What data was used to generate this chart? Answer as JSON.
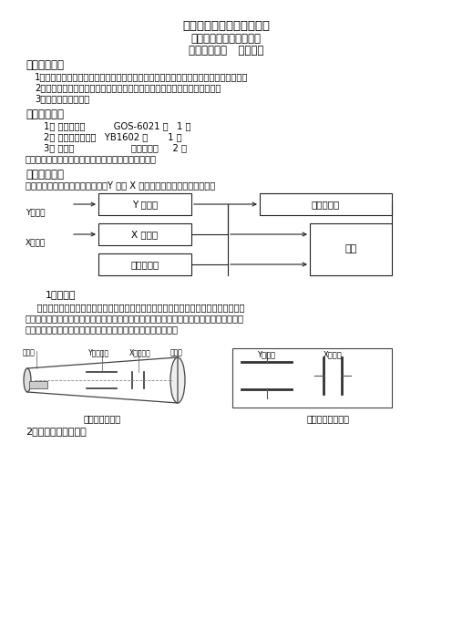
{
  "title_line1": "《示波器的使用》实验报告",
  "title_line2": "物理实验报告示范文本：",
  "title_line3": "包含数据处理   李萨如图",
  "section1": "【实验目的】",
  "obj1": "1．了解示波器显示波形的原理，了解示波器各主要组成部分及它们之间的联系和配合；",
  "obj2": "2．熟悉使用示波器的基本方法，学会用示波器测量波形的电压幅度和频率；",
  "obj3": "3．观察李萨如图形。",
  "section2": "【实验仪器】",
  "inst1": "1、 双踪示波器          GOS-6021 型   1 台",
  "inst2": "2、 函数信号发生器   YB1602 型       1 台",
  "inst3": "3、 连接线                    示波器专用     2 根",
  "inst_note": "示波器和信号发生器的使用说明请熟读常用仪器部分。",
  "section3": "【实验原理】",
  "principle": "示波器由示波管、扫描同步系统、Y 轴和 X 轴放大系统和电源四部分组成，",
  "sub1": "1、示波管",
  "tube1": "    如图所示，左端为一电子枪，电子枪加热后发出一束电子，电子经电场加速以高速打在",
  "tube2": "右端的药光屏上，屏上的药光物发光形成一亮点，亮点在偏转板电压的作用下，位置也随之",
  "tube3": "改变。在一定范围内，亮点的位移与偏转板上所加电压成正比。",
  "sub2": "2、扫描与同步的作用",
  "lbl_Y_in": "Y轴输入",
  "lbl_X_in": "X轴输入",
  "lbl_Y_amp": "Y 轴放大",
  "lbl_X_amp": "X 轴放大",
  "lbl_sweep": "扫描和整步",
  "lbl_crt": "电子示波管",
  "lbl_power": "电源",
  "cap1": "示波管结构简图",
  "cap2": "示波管内的偏转板",
  "lbl_egun": "电子枪",
  "lbl_yplate": "Y轴偏转板",
  "lbl_xplate": "X轴偏转板",
  "lbl_screen": "药光屏",
  "lbl_Ydefl": "Y偏转板",
  "lbl_Xdefl": "X偏转板"
}
